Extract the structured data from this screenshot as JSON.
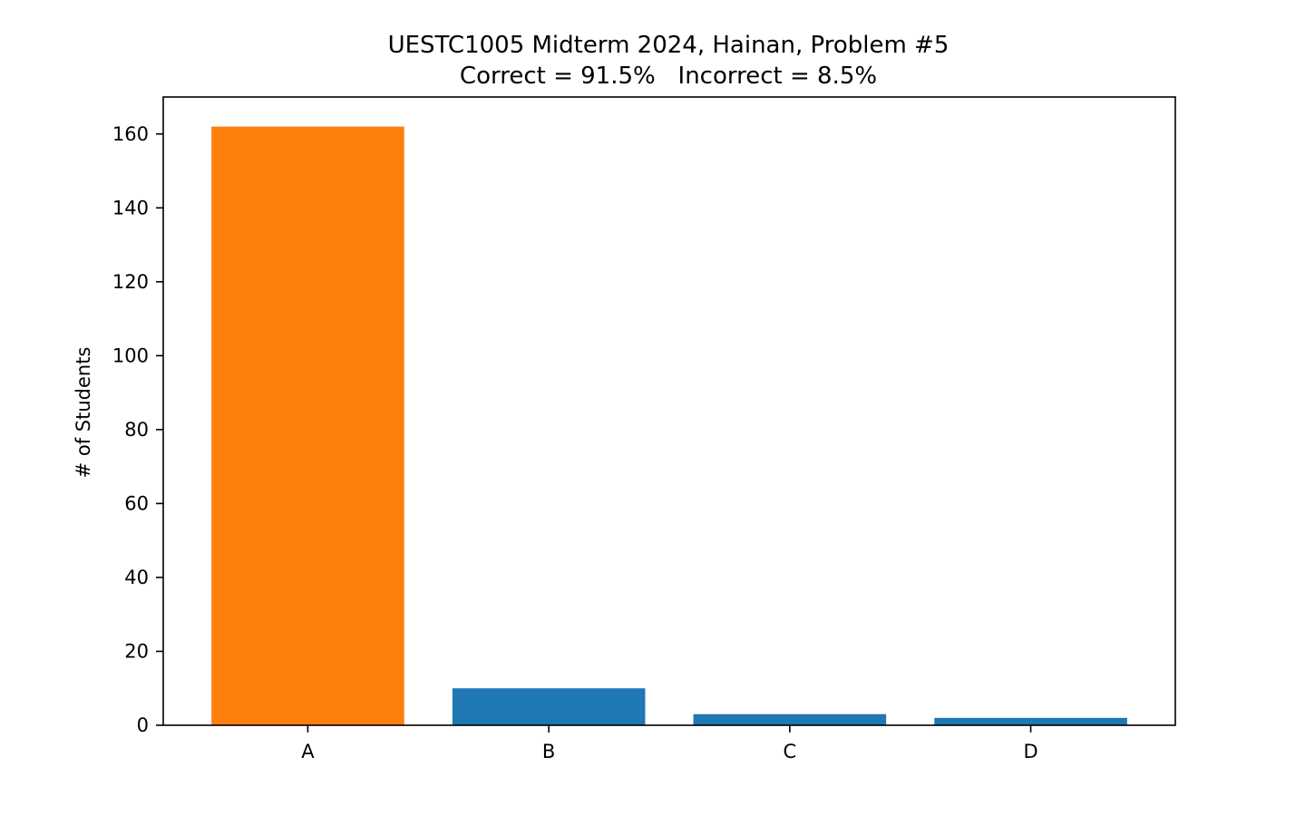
{
  "chart_data": {
    "type": "bar",
    "title": "UESTC1005 Midterm 2024, Hainan, Problem #5",
    "subtitle": "Correct = 91.5%   Incorrect = 8.5%",
    "xlabel": "",
    "ylabel": "# of Students",
    "categories": [
      "A",
      "B",
      "C",
      "D"
    ],
    "values": [
      162,
      10,
      3,
      2
    ],
    "colors": [
      "#ff7f0e",
      "#1f77b4",
      "#1f77b4",
      "#1f77b4"
    ],
    "ylim": [
      0,
      170
    ],
    "yticks": [
      0,
      20,
      40,
      60,
      80,
      100,
      120,
      140,
      160
    ],
    "grid": false,
    "legend": "none"
  }
}
